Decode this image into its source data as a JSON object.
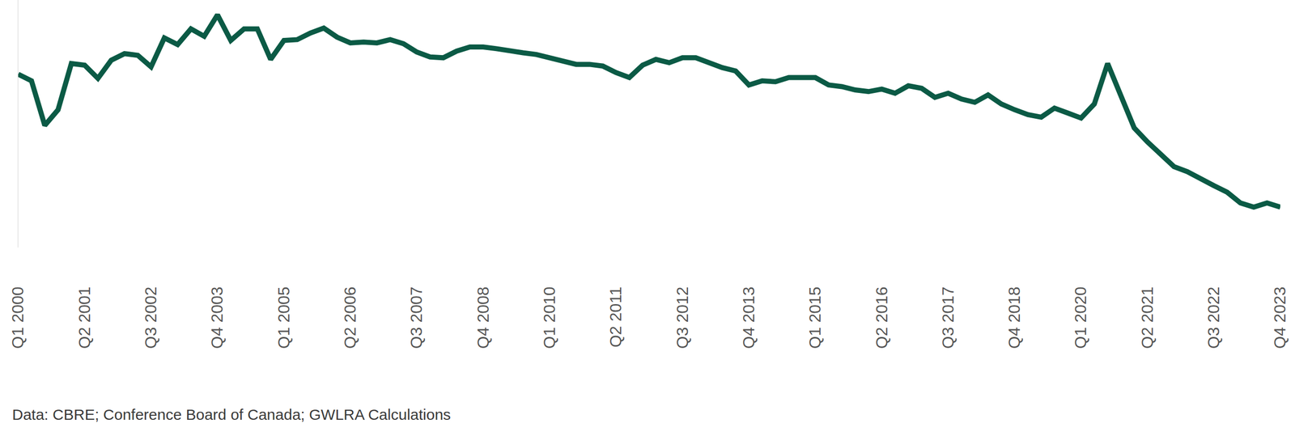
{
  "chart_data": {
    "type": "line",
    "categories": [
      "Q1 2000",
      null,
      null,
      null,
      null,
      "Q2 2001",
      null,
      null,
      null,
      null,
      "Q3 2002",
      null,
      null,
      null,
      null,
      "Q4 2003",
      null,
      null,
      null,
      null,
      "Q1 2005",
      null,
      null,
      null,
      null,
      "Q2 2006",
      null,
      null,
      null,
      null,
      "Q3 2007",
      null,
      null,
      null,
      null,
      "Q4 2008",
      null,
      null,
      null,
      null,
      "Q1 2010",
      null,
      null,
      null,
      null,
      "Q2 2011",
      null,
      null,
      null,
      null,
      "Q3 2012",
      null,
      null,
      null,
      null,
      "Q4 2013",
      null,
      null,
      null,
      null,
      "Q1 2015",
      null,
      null,
      null,
      null,
      "Q2 2016",
      null,
      null,
      null,
      null,
      "Q3 2017",
      null,
      null,
      null,
      null,
      "Q4 2018",
      null,
      null,
      null,
      null,
      "Q1 2020",
      null,
      null,
      null,
      null,
      "Q2 2021",
      null,
      null,
      null,
      null,
      "Q3 2022",
      null,
      null,
      null,
      null,
      "Q4 2023"
    ],
    "values": [
      210,
      202,
      148,
      167,
      223,
      221,
      205,
      227,
      235,
      233,
      219,
      254,
      246,
      265,
      256,
      282,
      251,
      265,
      265,
      228,
      251,
      252,
      260,
      266,
      255,
      248,
      249,
      248,
      252,
      247,
      237,
      231,
      230,
      238,
      243,
      243,
      241,
      238,
      236,
      234,
      230,
      225,
      222,
      222,
      220,
      212,
      206,
      221,
      228,
      224,
      230,
      230,
      224,
      218,
      214,
      197,
      202,
      201,
      206,
      206,
      206,
      197,
      195,
      191,
      189,
      192,
      187,
      196,
      193,
      182,
      187,
      180,
      176,
      185,
      174,
      167,
      161,
      158,
      169,
      163,
      157,
      174,
      223,
      184,
      145,
      128,
      113,
      98,
      92,
      83,
      75,
      67,
      54,
      49,
      54,
      49
    ],
    "color": "#0b5a45",
    "ylim": [
      0,
      300
    ],
    "grid": false,
    "tick_labels": "x",
    "annotations": [
      "Data: CBRE; Conference Board of Canada; GWLRA Calculations"
    ]
  }
}
